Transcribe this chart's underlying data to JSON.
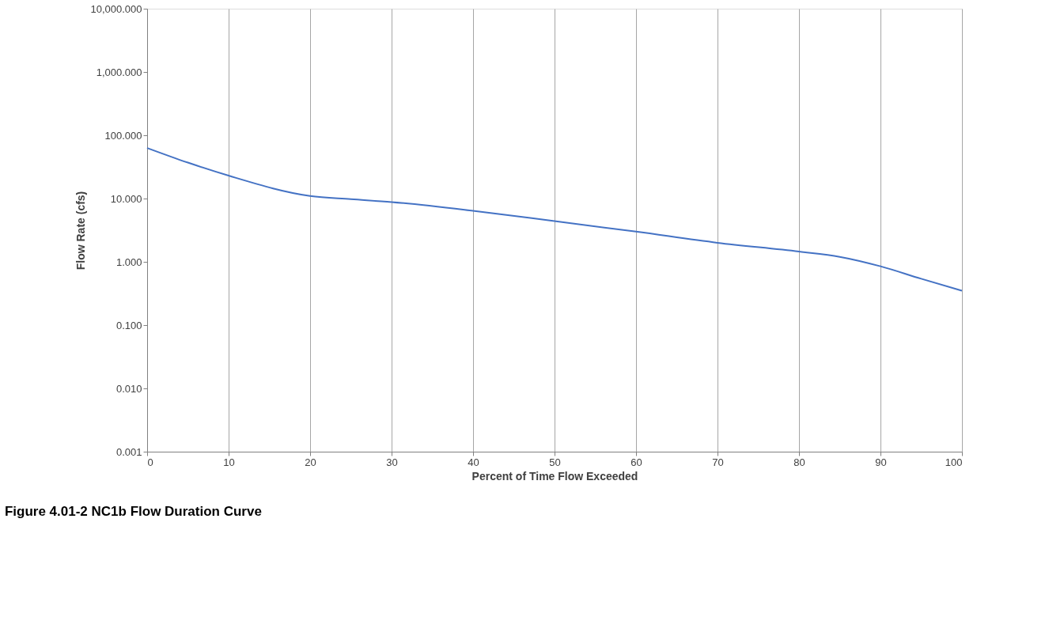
{
  "chart_data": {
    "type": "line",
    "xlabel": "Percent of Time Flow Exceeded",
    "ylabel": "Flow Rate (cfs)",
    "annotations": [
      "Figure 4.01-2  NC1b Flow Duration Curve"
    ],
    "x": [
      0,
      5,
      10,
      20,
      25,
      30,
      40,
      50,
      60,
      70,
      80,
      85,
      90,
      95,
      100
    ],
    "series": [
      {
        "color": "#4472c4",
        "values": [
          63,
          37,
          23,
          11,
          9.8,
          8.8,
          6.4,
          4.4,
          3.0,
          2.0,
          1.45,
          1.2,
          0.85,
          0.54,
          0.35
        ]
      }
    ],
    "log": "y",
    "grid": "x",
    "legend": false,
    "marker": "none",
    "line_style": "solid",
    "xlim": [
      0,
      100
    ],
    "xticks": [
      0,
      10,
      20,
      30,
      40,
      50,
      60,
      70,
      80,
      90,
      100
    ],
    "ylim": [
      0.001,
      10000
    ],
    "yticks": [
      {
        "value": 0.001,
        "label": "0.001"
      },
      {
        "value": 0.01,
        "label": "0.010"
      },
      {
        "value": 0.1,
        "label": "0.100"
      },
      {
        "value": 1,
        "label": "1.000"
      },
      {
        "value": 10,
        "label": "10.000"
      },
      {
        "value": 100,
        "label": "100.000"
      },
      {
        "value": 1000,
        "label": "1,000.000"
      },
      {
        "value": 10000,
        "label": "10,000.000"
      }
    ]
  }
}
